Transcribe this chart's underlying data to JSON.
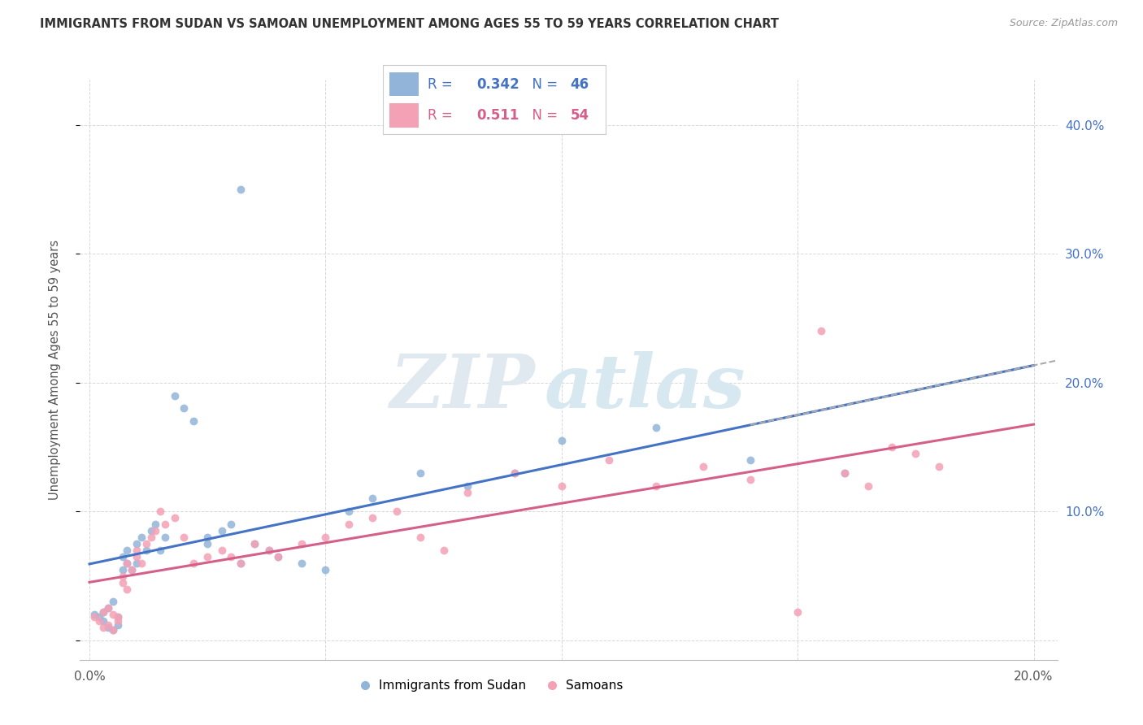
{
  "title": "IMMIGRANTS FROM SUDAN VS SAMOAN UNEMPLOYMENT AMONG AGES 55 TO 59 YEARS CORRELATION CHART",
  "source": "Source: ZipAtlas.com",
  "ylabel": "Unemployment Among Ages 55 to 59 years",
  "xlim": [
    -0.002,
    0.205
  ],
  "ylim": [
    -0.015,
    0.435
  ],
  "series1_color": "#92b4d8",
  "series2_color": "#f4a0b5",
  "series1_label": "Immigrants from Sudan",
  "series2_label": "Samoans",
  "R1": 0.342,
  "N1": 46,
  "R2": 0.511,
  "N2": 54,
  "line1_color": "#4472c4",
  "line2_color": "#d4608a",
  "watermark_zip": "ZIP",
  "watermark_atlas": "atlas",
  "background_color": "#ffffff",
  "grid_color": "#d8d8d8",
  "right_axis_color": "#4472c4",
  "sudan_x": [
    0.001,
    0.002,
    0.003,
    0.003,
    0.004,
    0.004,
    0.005,
    0.005,
    0.006,
    0.006,
    0.007,
    0.007,
    0.008,
    0.008,
    0.009,
    0.01,
    0.01,
    0.011,
    0.012,
    0.013,
    0.014,
    0.015,
    0.016,
    0.018,
    0.02,
    0.022,
    0.025,
    0.025,
    0.028,
    0.03,
    0.032,
    0.035,
    0.038,
    0.04,
    0.032,
    0.045,
    0.05,
    0.055,
    0.06,
    0.07,
    0.08,
    0.09,
    0.1,
    0.12,
    0.14,
    0.16
  ],
  "sudan_y": [
    0.02,
    0.018,
    0.022,
    0.015,
    0.025,
    0.01,
    0.008,
    0.03,
    0.012,
    0.018,
    0.055,
    0.065,
    0.06,
    0.07,
    0.055,
    0.075,
    0.06,
    0.08,
    0.07,
    0.085,
    0.09,
    0.07,
    0.08,
    0.19,
    0.18,
    0.17,
    0.08,
    0.075,
    0.085,
    0.09,
    0.35,
    0.075,
    0.07,
    0.065,
    0.06,
    0.06,
    0.055,
    0.1,
    0.11,
    0.13,
    0.12,
    0.13,
    0.155,
    0.165,
    0.14,
    0.13
  ],
  "samoan_x": [
    0.001,
    0.002,
    0.003,
    0.003,
    0.004,
    0.004,
    0.005,
    0.005,
    0.006,
    0.006,
    0.007,
    0.007,
    0.008,
    0.008,
    0.009,
    0.01,
    0.01,
    0.011,
    0.012,
    0.013,
    0.014,
    0.015,
    0.016,
    0.018,
    0.02,
    0.022,
    0.025,
    0.028,
    0.03,
    0.032,
    0.035,
    0.038,
    0.04,
    0.045,
    0.05,
    0.055,
    0.06,
    0.065,
    0.07,
    0.075,
    0.08,
    0.09,
    0.1,
    0.11,
    0.12,
    0.13,
    0.14,
    0.15,
    0.155,
    0.16,
    0.165,
    0.17,
    0.175,
    0.18
  ],
  "samoan_y": [
    0.018,
    0.015,
    0.022,
    0.01,
    0.012,
    0.025,
    0.008,
    0.02,
    0.015,
    0.018,
    0.05,
    0.045,
    0.04,
    0.06,
    0.055,
    0.065,
    0.07,
    0.06,
    0.075,
    0.08,
    0.085,
    0.1,
    0.09,
    0.095,
    0.08,
    0.06,
    0.065,
    0.07,
    0.065,
    0.06,
    0.075,
    0.07,
    0.065,
    0.075,
    0.08,
    0.09,
    0.095,
    0.1,
    0.08,
    0.07,
    0.115,
    0.13,
    0.12,
    0.14,
    0.12,
    0.135,
    0.125,
    0.022,
    0.24,
    0.13,
    0.12,
    0.15,
    0.145,
    0.135
  ]
}
